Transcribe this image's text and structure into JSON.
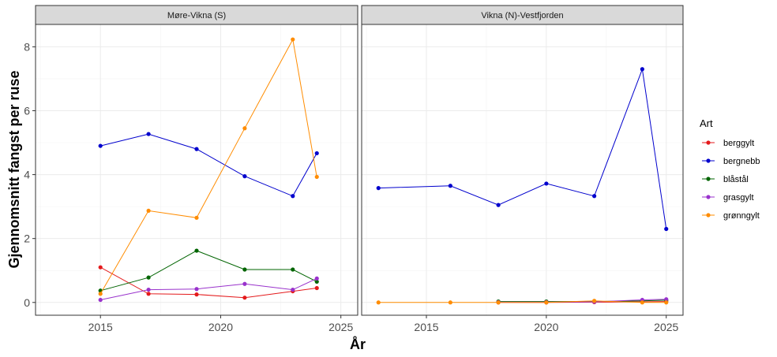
{
  "chart_data": {
    "type": "line",
    "xlabel": "År",
    "ylabel": "Gjennomsnitt fangst per ruse",
    "xlim": [
      2012.3,
      2025.7
    ],
    "ylim": [
      -0.4,
      8.7
    ],
    "x_ticks": [
      2015,
      2020,
      2025
    ],
    "y_ticks": [
      0,
      2,
      4,
      6,
      8
    ],
    "grid": true,
    "legend": {
      "title": "Art",
      "position": "right"
    },
    "colors": {
      "berggylt": "#e41a1c",
      "bergnebb": "#0000cd",
      "blåstål": "#006400",
      "grasgylt": "#9932cc",
      "grønngylt": "#ff8c00"
    },
    "facets": [
      {
        "name": "Møre-Vikna (S)",
        "series": [
          {
            "name": "berggylt",
            "x": [
              2015,
              2017,
              2019,
              2021,
              2023,
              2024
            ],
            "values": [
              1.1,
              0.27,
              0.25,
              0.15,
              0.35,
              0.45
            ]
          },
          {
            "name": "bergnebb",
            "x": [
              2015,
              2017,
              2019,
              2021,
              2023,
              2024
            ],
            "values": [
              4.9,
              5.27,
              4.8,
              3.95,
              3.33,
              4.67
            ]
          },
          {
            "name": "blåstål",
            "x": [
              2015,
              2017,
              2019,
              2021,
              2023,
              2024
            ],
            "values": [
              0.37,
              0.78,
              1.62,
              1.03,
              1.03,
              0.65
            ]
          },
          {
            "name": "grasgylt",
            "x": [
              2015,
              2017,
              2019,
              2021,
              2023,
              2024
            ],
            "values": [
              0.08,
              0.4,
              0.42,
              0.58,
              0.4,
              0.75
            ]
          },
          {
            "name": "grønngylt",
            "x": [
              2015,
              2017,
              2019,
              2021,
              2023,
              2024
            ],
            "values": [
              0.27,
              2.87,
              2.65,
              5.45,
              8.23,
              3.93
            ]
          }
        ]
      },
      {
        "name": "Vikna (N)-Vestfjorden",
        "series": [
          {
            "name": "berggylt",
            "x": [
              2018,
              2020,
              2022,
              2024,
              2025
            ],
            "values": [
              0.0,
              0.0,
              0.01,
              0.02,
              0.03
            ]
          },
          {
            "name": "bergnebb",
            "x": [
              2013,
              2016,
              2018,
              2020,
              2022,
              2024,
              2025
            ],
            "values": [
              3.58,
              3.65,
              3.05,
              3.72,
              3.33,
              7.3,
              2.3
            ]
          },
          {
            "name": "blåstål",
            "x": [
              2018,
              2020,
              2022,
              2024,
              2025
            ],
            "values": [
              0.03,
              0.03,
              0.03,
              0.05,
              0.07
            ]
          },
          {
            "name": "grasgylt",
            "x": [
              2018,
              2020,
              2022,
              2024,
              2025
            ],
            "values": [
              0.01,
              0.01,
              0.02,
              0.08,
              0.1
            ]
          },
          {
            "name": "grønngylt",
            "x": [
              2013,
              2016,
              2018,
              2020,
              2022,
              2024,
              2025
            ],
            "values": [
              0.0,
              0.0,
              0.0,
              0.0,
              0.05,
              0.0,
              0.0
            ]
          }
        ]
      }
    ]
  }
}
